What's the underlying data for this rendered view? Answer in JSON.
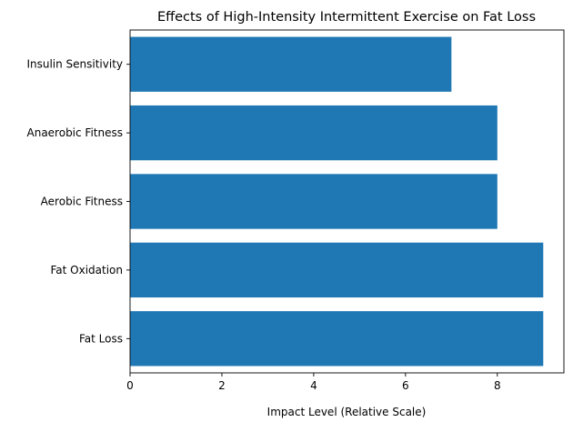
{
  "chart_data": {
    "type": "bar",
    "orientation": "horizontal",
    "title": "Effects of High-Intensity Intermittent Exercise on Fat Loss",
    "xlabel": "Impact Level (Relative Scale)",
    "ylabel": "",
    "categories": [
      "Fat Loss",
      "Fat Oxidation",
      "Aerobic Fitness",
      "Anaerobic Fitness",
      "Insulin Sensitivity"
    ],
    "values": [
      9,
      9,
      8,
      8,
      7
    ],
    "xlim": [
      0,
      9.45
    ],
    "xticks": [
      0,
      2,
      4,
      6,
      8
    ],
    "grid": false,
    "legend": "none",
    "bar_color": "#1f77b4"
  }
}
